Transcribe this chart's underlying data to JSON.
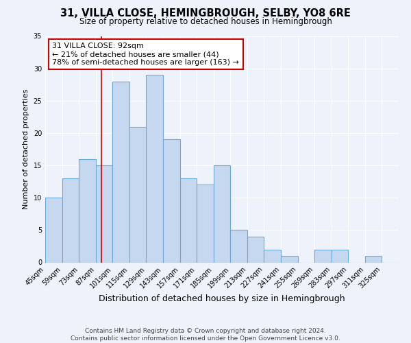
{
  "title": "31, VILLA CLOSE, HEMINGBROUGH, SELBY, YO8 6RE",
  "subtitle": "Size of property relative to detached houses in Hemingbrough",
  "xlabel": "Distribution of detached houses by size in Hemingbrough",
  "ylabel": "Number of detached properties",
  "bar_labels": [
    "45sqm",
    "59sqm",
    "73sqm",
    "87sqm",
    "101sqm",
    "115sqm",
    "129sqm",
    "143sqm",
    "157sqm",
    "171sqm",
    "185sqm",
    "199sqm",
    "213sqm",
    "227sqm",
    "241sqm",
    "255sqm",
    "269sqm",
    "283sqm",
    "297sqm",
    "311sqm",
    "325sqm"
  ],
  "bar_heights": [
    10,
    13,
    16,
    15,
    28,
    21,
    29,
    19,
    13,
    12,
    15,
    5,
    4,
    2,
    1,
    0,
    2,
    2,
    0,
    1,
    0
  ],
  "bar_color": "#c5d8f0",
  "bar_edge_color": "#6aaad4",
  "bin_edges": [
    45,
    59,
    73,
    87,
    101,
    115,
    129,
    143,
    157,
    171,
    185,
    199,
    213,
    227,
    241,
    255,
    269,
    283,
    297,
    311,
    325,
    339
  ],
  "vline_x": 92,
  "vline_color": "#cc0000",
  "ylim": [
    0,
    35
  ],
  "yticks": [
    0,
    5,
    10,
    15,
    20,
    25,
    30,
    35
  ],
  "annotation_text": "31 VILLA CLOSE: 92sqm\n← 21% of detached houses are smaller (44)\n78% of semi-detached houses are larger (163) →",
  "annotation_box_color": "#ffffff",
  "annotation_box_edge": "#cc0000",
  "footer_line1": "Contains HM Land Registry data © Crown copyright and database right 2024.",
  "footer_line2": "Contains public sector information licensed under the Open Government Licence v3.0.",
  "background_color": "#eef2fa",
  "grid_color": "#ffffff",
  "title_fontsize": 10.5,
  "subtitle_fontsize": 8.5,
  "xlabel_fontsize": 9,
  "ylabel_fontsize": 8,
  "tick_fontsize": 7,
  "annotation_fontsize": 8,
  "footer_fontsize": 6.5
}
